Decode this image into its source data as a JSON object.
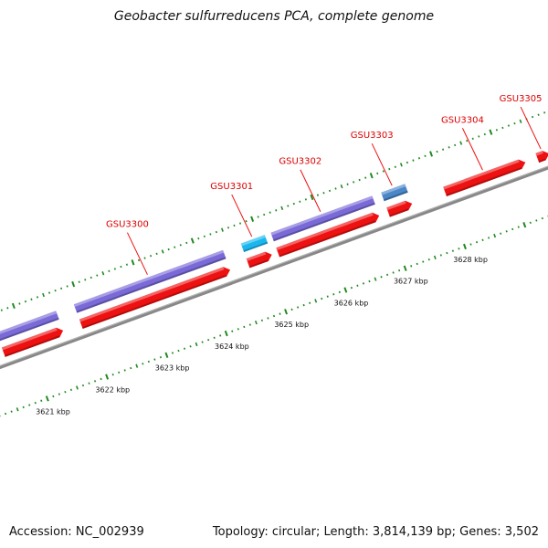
{
  "title": "Geobacter sulfurreducens PCA, complete genome",
  "footer": {
    "accession": "Accession: NC_002939",
    "summary": "Topology: circular; Length: 3,814,139 bp; Genes: 3,502"
  },
  "colors": {
    "forward_cds": "#ee1111",
    "purple_feature": "#7a6ad8",
    "cyan_feature": "#19b7f0",
    "steelblue_feature": "#4a86c8",
    "backbone": "#888888",
    "ticks": "#1f8a1f",
    "label": "#dd0000"
  },
  "axis": {
    "unit": "kbp",
    "visible_range_kbp": [
      3620.6,
      3629.4
    ],
    "ticks": [
      {
        "value": 3621,
        "label": "3621 kbp"
      },
      {
        "value": 3622,
        "label": "3622 kbp"
      },
      {
        "value": 3623,
        "label": "3623 kbp"
      },
      {
        "value": 3624,
        "label": "3624 kbp"
      },
      {
        "value": 3625,
        "label": "3625 kbp"
      },
      {
        "value": 3626,
        "label": "3626 kbp"
      },
      {
        "value": 3627,
        "label": "3627 kbp"
      },
      {
        "value": 3628,
        "label": "3628 kbp"
      }
    ]
  },
  "genes": [
    {
      "name": "GSU3300",
      "start": 3621.9,
      "end": 3624.4,
      "kind": "purple",
      "labeled": true
    },
    {
      "name": "GSU3301",
      "start": 3624.7,
      "end": 3625.1,
      "kind": "cyan",
      "labeled": true
    },
    {
      "name": "GSU3302",
      "start": 3625.2,
      "end": 3626.9,
      "kind": "purple",
      "labeled": true
    },
    {
      "name": "GSU3303",
      "start": 3627.05,
      "end": 3627.45,
      "kind": "steelblue",
      "labeled": true
    },
    {
      "name": "GSU3304",
      "start": 3628.0,
      "end": 3629.35,
      "kind": "cds_only",
      "labeled": true
    },
    {
      "name": "GSU3305",
      "start": 3629.55,
      "end": 3629.75,
      "kind": "cds_only",
      "labeled": true
    },
    {
      "name": "",
      "start": 3620.6,
      "end": 3621.6,
      "kind": "purple",
      "labeled": false
    }
  ]
}
